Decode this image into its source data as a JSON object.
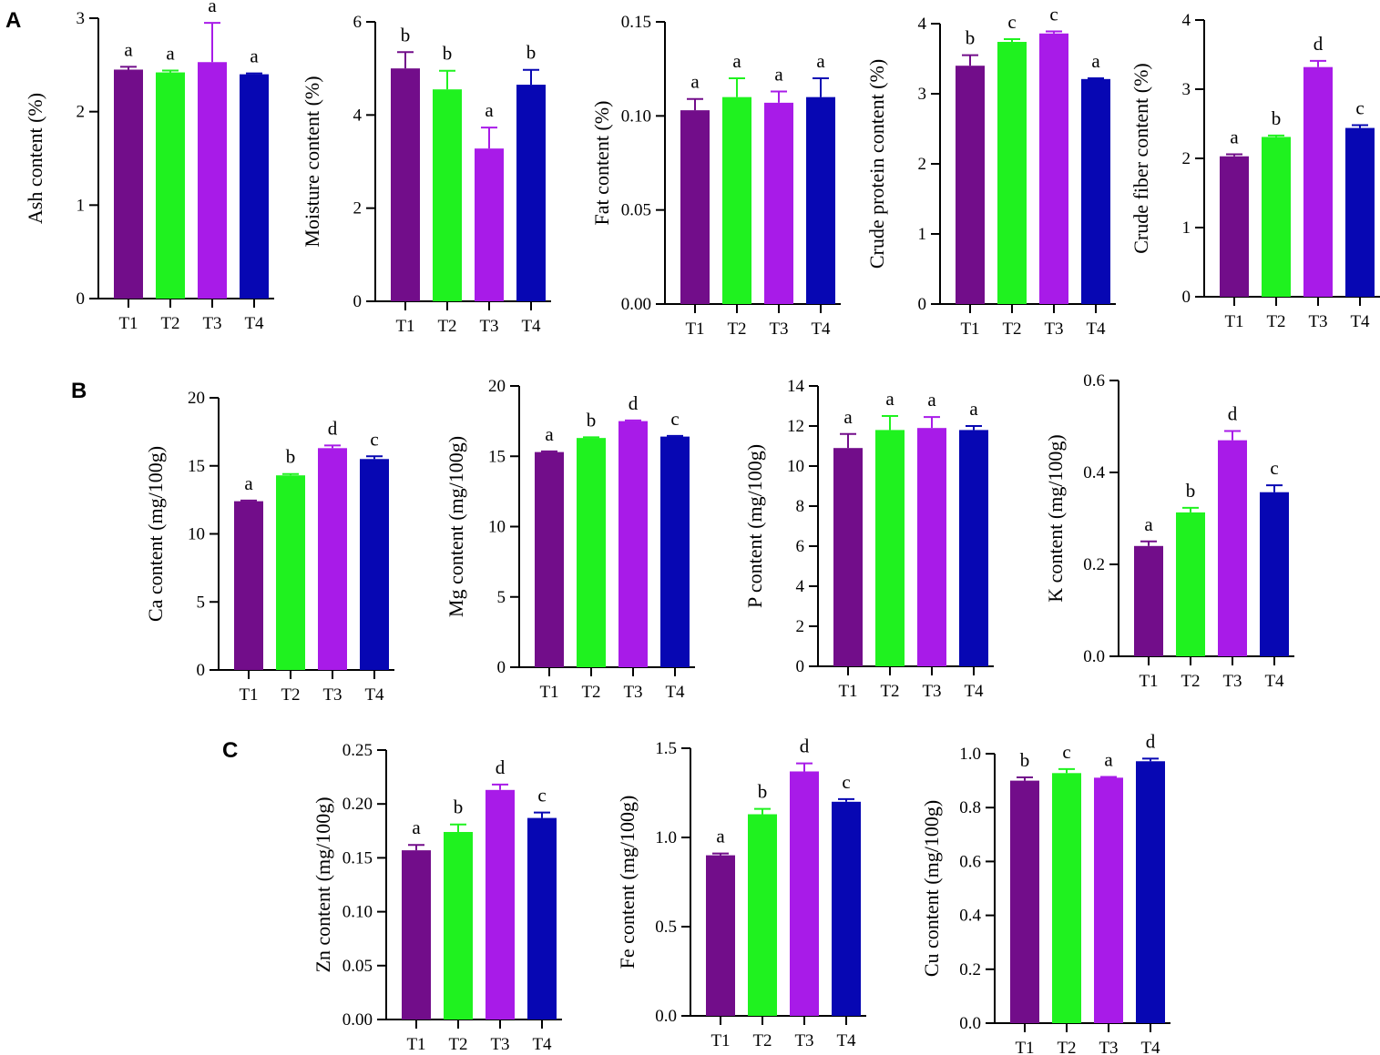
{
  "panels": [
    "A",
    "B",
    "C"
  ],
  "colors": {
    "T1": "#720d8a",
    "T2": "#1ff21f",
    "T3": "#a81be8",
    "T4": "#0707b3",
    "axis": "#000000"
  },
  "chart_data": [
    {
      "type": "bar",
      "panel": "A",
      "title": "",
      "xlabel": "",
      "ylabel": "Ash content (%)",
      "categories": [
        "T1",
        "T2",
        "T3",
        "T4"
      ],
      "values": [
        2.45,
        2.42,
        2.53,
        2.4
      ],
      "errors": [
        0.03,
        0.02,
        0.42,
        0.01
      ],
      "letters": [
        "a",
        "a",
        "a",
        "a"
      ],
      "ylim": [
        0,
        3
      ],
      "yticks": [
        0,
        1,
        2,
        3
      ],
      "yticklabels": [
        "0",
        "1",
        "2",
        "3"
      ]
    },
    {
      "type": "bar",
      "panel": "A",
      "title": "",
      "xlabel": "",
      "ylabel": "Moisture content (%)",
      "categories": [
        "T1",
        "T2",
        "T3",
        "T4"
      ],
      "values": [
        5.0,
        4.55,
        3.28,
        4.65
      ],
      "errors": [
        0.35,
        0.4,
        0.45,
        0.32
      ],
      "letters": [
        "b",
        "b",
        "a",
        "b"
      ],
      "ylim": [
        0,
        6
      ],
      "yticks": [
        0,
        2,
        4,
        6
      ],
      "yticklabels": [
        "0",
        "2",
        "4",
        "6"
      ]
    },
    {
      "type": "bar",
      "panel": "A",
      "title": "",
      "xlabel": "",
      "ylabel": "Fat content (%)",
      "categories": [
        "T1",
        "T2",
        "T3",
        "T4"
      ],
      "values": [
        0.103,
        0.11,
        0.107,
        0.11
      ],
      "errors": [
        0.006,
        0.01,
        0.006,
        0.01
      ],
      "letters": [
        "a",
        "a",
        "a",
        "a"
      ],
      "ylim": [
        0,
        0.15
      ],
      "yticks": [
        0,
        0.05,
        0.1,
        0.15
      ],
      "yticklabels": [
        "0.00",
        "0.05",
        "0.10",
        "0.15"
      ]
    },
    {
      "type": "bar",
      "panel": "A",
      "title": "",
      "xlabel": "",
      "ylabel": "Crude protein content (%)",
      "categories": [
        "T1",
        "T2",
        "T3",
        "T4"
      ],
      "values": [
        3.4,
        3.74,
        3.86,
        3.21
      ],
      "errors": [
        0.15,
        0.04,
        0.03,
        0.01
      ],
      "letters": [
        "b",
        "c",
        "c",
        "a"
      ],
      "ylim": [
        0,
        4
      ],
      "yticks": [
        0,
        1,
        2,
        3,
        4
      ],
      "yticklabels": [
        "0",
        "1",
        "2",
        "3",
        "4"
      ]
    },
    {
      "type": "bar",
      "panel": "A",
      "title": "",
      "xlabel": "",
      "ylabel": "Crude fiber content (%)",
      "categories": [
        "T1",
        "T2",
        "T3",
        "T4"
      ],
      "values": [
        2.03,
        2.31,
        3.32,
        2.44
      ],
      "errors": [
        0.03,
        0.02,
        0.09,
        0.04
      ],
      "letters": [
        "a",
        "b",
        "d",
        "c"
      ],
      "ylim": [
        0,
        4
      ],
      "yticks": [
        0,
        1,
        2,
        3,
        4
      ],
      "yticklabels": [
        "0",
        "1",
        "2",
        "3",
        "4"
      ]
    },
    {
      "type": "bar",
      "panel": "B",
      "title": "",
      "xlabel": "",
      "ylabel": "Ca content (mg/100g)",
      "categories": [
        "T1",
        "T2",
        "T3",
        "T4"
      ],
      "values": [
        12.4,
        14.3,
        16.3,
        15.5
      ],
      "errors": [
        0.05,
        0.1,
        0.2,
        0.2
      ],
      "letters": [
        "a",
        "b",
        "d",
        "c"
      ],
      "ylim": [
        0,
        20
      ],
      "yticks": [
        0,
        5,
        10,
        15,
        20
      ],
      "yticklabels": [
        "0",
        "5",
        "10",
        "15",
        "20"
      ]
    },
    {
      "type": "bar",
      "panel": "B",
      "title": "",
      "xlabel": "",
      "ylabel": "Mg content (mg/100g)",
      "categories": [
        "T1",
        "T2",
        "T3",
        "T4"
      ],
      "values": [
        15.3,
        16.3,
        17.5,
        16.4
      ],
      "errors": [
        0.05,
        0.05,
        0.05,
        0.05
      ],
      "letters": [
        "a",
        "b",
        "d",
        "c"
      ],
      "ylim": [
        0,
        20
      ],
      "yticks": [
        0,
        5,
        10,
        15,
        20
      ],
      "yticklabels": [
        "0",
        "5",
        "10",
        "15",
        "20"
      ]
    },
    {
      "type": "bar",
      "panel": "B",
      "title": "",
      "xlabel": "",
      "ylabel": "P content (mg/100g)",
      "categories": [
        "T1",
        "T2",
        "T3",
        "T4"
      ],
      "values": [
        10.9,
        11.8,
        11.9,
        11.8
      ],
      "errors": [
        0.7,
        0.7,
        0.55,
        0.2
      ],
      "letters": [
        "a",
        "a",
        "a",
        "a"
      ],
      "ylim": [
        0,
        14
      ],
      "yticks": [
        0,
        2,
        4,
        6,
        8,
        10,
        12,
        14
      ],
      "yticklabels": [
        "0",
        "2",
        "4",
        "6",
        "8",
        "10",
        "12",
        "14"
      ]
    },
    {
      "type": "bar",
      "panel": "B",
      "title": "",
      "xlabel": "",
      "ylabel": "K content (mg/100g)",
      "categories": [
        "T1",
        "T2",
        "T3",
        "T4"
      ],
      "values": [
        0.24,
        0.313,
        0.47,
        0.357
      ],
      "errors": [
        0.01,
        0.01,
        0.02,
        0.015
      ],
      "letters": [
        "a",
        "b",
        "d",
        "c"
      ],
      "ylim": [
        0,
        0.6
      ],
      "yticks": [
        0,
        0.2,
        0.4,
        0.6
      ],
      "yticklabels": [
        "0.0",
        "0.2",
        "0.4",
        "0.6"
      ]
    },
    {
      "type": "bar",
      "panel": "C",
      "title": "",
      "xlabel": "",
      "ylabel": "Zn content (mg/100g)",
      "categories": [
        "T1",
        "T2",
        "T3",
        "T4"
      ],
      "values": [
        0.157,
        0.174,
        0.213,
        0.187
      ],
      "errors": [
        0.005,
        0.007,
        0.005,
        0.005
      ],
      "letters": [
        "a",
        "b",
        "d",
        "c"
      ],
      "ylim": [
        0,
        0.25
      ],
      "yticks": [
        0,
        0.05,
        0.1,
        0.15,
        0.2,
        0.25
      ],
      "yticklabels": [
        "0.00",
        "0.05",
        "0.10",
        "0.15",
        "0.20",
        "0.25"
      ]
    },
    {
      "type": "bar",
      "panel": "C",
      "title": "",
      "xlabel": "",
      "ylabel": "Fe content (mg/100g)",
      "categories": [
        "T1",
        "T2",
        "T3",
        "T4"
      ],
      "values": [
        0.9,
        1.13,
        1.37,
        1.2
      ],
      "errors": [
        0.01,
        0.03,
        0.045,
        0.015
      ],
      "letters": [
        "a",
        "b",
        "d",
        "c"
      ],
      "ylim": [
        0,
        1.5
      ],
      "yticks": [
        0,
        0.5,
        1.0,
        1.5
      ],
      "yticklabels": [
        "0.0",
        "0.5",
        "1.0",
        "1.5"
      ]
    },
    {
      "type": "bar",
      "panel": "C",
      "title": "",
      "xlabel": "",
      "ylabel": "Cu content (mg/100g)",
      "categories": [
        "T1",
        "T2",
        "T3",
        "T4"
      ],
      "values": [
        0.9,
        0.928,
        0.911,
        0.972
      ],
      "errors": [
        0.012,
        0.015,
        0.003,
        0.01
      ],
      "letters": [
        "b",
        "c",
        "a",
        "d"
      ],
      "ylim": [
        0,
        1.0
      ],
      "yticks": [
        0,
        0.2,
        0.4,
        0.6,
        0.8,
        1.0
      ],
      "yticklabels": [
        "0.0",
        "0.2",
        "0.4",
        "0.6",
        "0.8",
        "1.0"
      ]
    }
  ]
}
